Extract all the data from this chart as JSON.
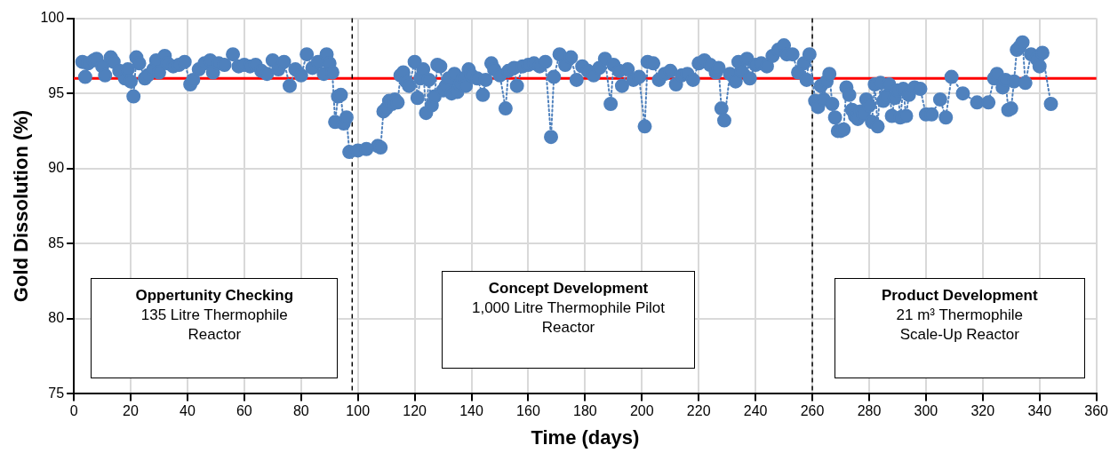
{
  "chart_data": {
    "type": "line",
    "xlabel": "Time (days)",
    "ylabel": "Gold Dissolution (%)",
    "xlim": [
      0,
      360
    ],
    "xticks": [
      0,
      20,
      40,
      60,
      80,
      100,
      120,
      140,
      160,
      180,
      200,
      220,
      240,
      260,
      280,
      300,
      320,
      340,
      360
    ],
    "ylim": [
      75,
      100
    ],
    "yticks": [
      75,
      80,
      85,
      90,
      95,
      100
    ],
    "grid": true,
    "marker": "circle",
    "line_style": "dotted",
    "series": [
      {
        "color": "#4f81bd",
        "x": [
          3,
          4,
          5,
          7,
          8,
          10,
          11,
          13,
          14,
          16,
          18,
          19,
          20,
          21,
          22,
          23,
          25,
          26,
          28,
          29,
          30,
          32,
          33,
          35,
          37,
          39,
          41,
          42,
          44,
          46,
          48,
          49,
          51,
          53,
          56,
          58,
          60,
          62,
          64,
          66,
          68,
          70,
          72,
          74,
          76,
          78,
          80,
          82,
          84,
          86,
          88,
          89,
          90,
          91,
          92,
          93,
          94,
          95,
          96,
          97,
          100,
          103,
          107,
          108,
          109,
          110,
          111,
          112,
          113,
          114,
          115,
          116,
          117,
          118,
          120,
          121,
          122,
          123,
          124,
          125,
          126,
          127,
          128,
          129,
          130,
          131,
          132,
          133,
          134,
          135,
          136,
          137,
          138,
          139,
          140,
          142,
          144,
          145,
          147,
          148,
          150,
          152,
          153,
          155,
          156,
          158,
          160,
          162,
          164,
          166,
          168,
          169,
          171,
          173,
          175,
          177,
          179,
          181,
          183,
          185,
          187,
          189,
          190,
          192,
          193,
          195,
          197,
          199,
          201,
          202,
          204,
          206,
          208,
          210,
          212,
          214,
          216,
          218,
          220,
          222,
          224,
          226,
          227,
          228,
          229,
          231,
          233,
          234,
          235,
          237,
          238,
          240,
          242,
          244,
          246,
          248,
          250,
          251,
          253,
          255,
          257,
          258,
          259,
          261,
          262,
          263,
          264,
          265,
          266,
          267,
          268,
          269,
          270,
          271,
          272,
          273,
          274,
          275,
          276,
          277,
          278,
          279,
          280,
          281,
          282,
          283,
          284,
          285,
          286,
          287,
          288,
          289,
          290,
          291,
          292,
          293,
          294,
          296,
          298,
          300,
          302,
          305,
          307,
          309,
          313,
          318,
          322,
          324,
          325,
          327,
          328,
          329,
          330,
          331,
          332,
          333,
          334,
          335,
          337,
          339,
          340,
          341,
          344
        ],
        "values": [
          97.1,
          96.1,
          97.0,
          97.2,
          97.3,
          96.8,
          96.2,
          97.4,
          97.1,
          96.5,
          96.0,
          96.6,
          95.8,
          94.8,
          97.4,
          97.0,
          96.0,
          96.2,
          96.6,
          97.2,
          96.4,
          97.5,
          97.0,
          96.8,
          96.9,
          97.1,
          95.6,
          95.9,
          96.6,
          97.0,
          97.2,
          96.4,
          97.0,
          96.9,
          97.6,
          96.8,
          96.9,
          96.8,
          96.9,
          96.5,
          96.3,
          97.2,
          96.6,
          97.1,
          95.5,
          96.6,
          96.2,
          97.6,
          96.7,
          97.1,
          96.3,
          97.6,
          97.0,
          96.4,
          93.1,
          94.8,
          94.9,
          93.0,
          93.4,
          91.1,
          91.2,
          91.3,
          91.5,
          91.4,
          93.8,
          94.0,
          94.5,
          94.3,
          94.6,
          94.4,
          96.2,
          96.4,
          95.8,
          95.5,
          97.1,
          94.7,
          96.0,
          96.6,
          93.7,
          95.9,
          94.2,
          94.8,
          96.9,
          96.8,
          95.2,
          95.5,
          96.0,
          95.0,
          96.3,
          95.1,
          95.6,
          96.0,
          95.5,
          96.6,
          96.2,
          96.0,
          94.9,
          95.9,
          97.0,
          96.6,
          96.2,
          94.0,
          96.5,
          96.7,
          95.5,
          96.8,
          96.9,
          97.0,
          96.8,
          97.1,
          92.1,
          96.1,
          97.6,
          96.9,
          97.4,
          95.9,
          96.8,
          96.5,
          96.2,
          96.7,
          97.3,
          94.3,
          96.9,
          96.5,
          95.5,
          96.6,
          95.9,
          96.1,
          92.8,
          97.1,
          97.0,
          95.9,
          96.3,
          96.5,
          95.6,
          96.2,
          96.3,
          95.9,
          97.0,
          97.2,
          96.9,
          96.4,
          96.7,
          94.0,
          93.2,
          96.3,
          95.8,
          97.1,
          96.5,
          97.3,
          96.0,
          96.9,
          97.0,
          96.8,
          97.5,
          97.9,
          98.2,
          97.6,
          97.6,
          96.4,
          97.0,
          95.9,
          97.6,
          94.5,
          94.1,
          95.5,
          94.6,
          95.8,
          96.3,
          94.3,
          93.4,
          92.5,
          92.5,
          92.6,
          95.4,
          94.9,
          93.9,
          93.5,
          93.3,
          93.8,
          93.6,
          94.6,
          94.2,
          93.1,
          95.6,
          92.8,
          95.7,
          94.5,
          94.8,
          95.6,
          93.5,
          94.7,
          95.2,
          93.4,
          95.3,
          93.5,
          94.9,
          95.4,
          95.3,
          93.6,
          93.6,
          94.6,
          93.4,
          96.1,
          95.0,
          94.4,
          94.4,
          96.0,
          96.3,
          95.4,
          95.9,
          93.9,
          94.0,
          95.8,
          97.9,
          98.1,
          98.4,
          95.7,
          97.6,
          97.3,
          96.8,
          97.7,
          94.3
        ]
      }
    ],
    "ref_lines": [
      {
        "axis": "y",
        "value": 96,
        "color": "#ff0000",
        "line_style": "solid"
      },
      {
        "axis": "x",
        "value": 98,
        "color": "#000000",
        "line_style": "dashed"
      },
      {
        "axis": "x",
        "value": 260,
        "color": "#000000",
        "line_style": "dashed"
      }
    ],
    "annotations": [
      "Oppertunity Checking\n135 Litre Thermophile\nReactor",
      "Concept Development\n1,000 Litre Thermophile Pilot\nReactor",
      "Product Development\n21 m³ Thermophile\nScale-Up Reactor"
    ]
  }
}
